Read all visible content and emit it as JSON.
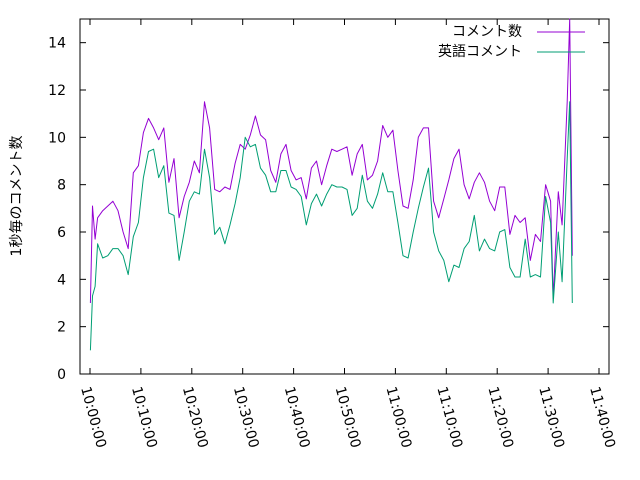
{
  "chart_data": {
    "type": "line",
    "ylabel": "1秒毎のコメント数",
    "ylim": [
      0,
      15
    ],
    "yticks": [
      0,
      2,
      4,
      6,
      8,
      10,
      12,
      14
    ],
    "xticks": [
      "10:00:00",
      "10:10:00",
      "10:20:00",
      "10:30:00",
      "10:40:00",
      "10:50:00",
      "11:00:00",
      "11:10:00",
      "11:20:00",
      "11:30:00",
      "11:40:00"
    ],
    "legend_position": "top-right",
    "series": [
      {
        "name": "コメント数",
        "color": "#9400d3",
        "points": [
          [
            "10:00:05",
            3.0
          ],
          [
            "10:00:30",
            7.1
          ],
          [
            "10:01:00",
            5.7
          ],
          [
            "10:01:30",
            6.6
          ],
          [
            "10:02:30",
            6.9
          ],
          [
            "10:03:30",
            7.1
          ],
          [
            "10:04:30",
            7.3
          ],
          [
            "10:05:30",
            6.9
          ],
          [
            "10:06:30",
            6.0
          ],
          [
            "10:07:30",
            5.3
          ],
          [
            "10:08:30",
            8.5
          ],
          [
            "10:09:30",
            8.8
          ],
          [
            "10:10:30",
            10.2
          ],
          [
            "10:11:30",
            10.8
          ],
          [
            "10:12:30",
            10.4
          ],
          [
            "10:13:30",
            9.9
          ],
          [
            "10:14:30",
            10.4
          ],
          [
            "10:15:30",
            8.1
          ],
          [
            "10:16:30",
            9.1
          ],
          [
            "10:17:30",
            6.6
          ],
          [
            "10:18:30",
            7.5
          ],
          [
            "10:19:30",
            8.1
          ],
          [
            "10:20:30",
            9.0
          ],
          [
            "10:21:30",
            8.5
          ],
          [
            "10:22:30",
            11.5
          ],
          [
            "10:23:30",
            10.4
          ],
          [
            "10:24:30",
            7.8
          ],
          [
            "10:25:30",
            7.7
          ],
          [
            "10:26:30",
            7.9
          ],
          [
            "10:27:30",
            7.8
          ],
          [
            "10:28:30",
            8.9
          ],
          [
            "10:29:30",
            9.7
          ],
          [
            "10:30:30",
            9.5
          ],
          [
            "10:31:30",
            10.1
          ],
          [
            "10:32:30",
            10.9
          ],
          [
            "10:33:30",
            10.1
          ],
          [
            "10:34:30",
            9.9
          ],
          [
            "10:35:30",
            8.6
          ],
          [
            "10:36:30",
            8.1
          ],
          [
            "10:37:30",
            9.3
          ],
          [
            "10:38:30",
            9.7
          ],
          [
            "10:39:30",
            8.6
          ],
          [
            "10:40:30",
            8.2
          ],
          [
            "10:41:30",
            8.3
          ],
          [
            "10:42:30",
            7.4
          ],
          [
            "10:43:30",
            8.7
          ],
          [
            "10:44:30",
            9.0
          ],
          [
            "10:45:30",
            8.0
          ],
          [
            "10:46:30",
            8.8
          ],
          [
            "10:47:30",
            9.5
          ],
          [
            "10:48:30",
            9.4
          ],
          [
            "10:49:30",
            9.5
          ],
          [
            "10:50:30",
            9.6
          ],
          [
            "10:51:30",
            8.4
          ],
          [
            "10:52:30",
            9.3
          ],
          [
            "10:53:30",
            9.7
          ],
          [
            "10:54:30",
            8.2
          ],
          [
            "10:55:30",
            8.4
          ],
          [
            "10:56:30",
            9.0
          ],
          [
            "10:57:30",
            10.5
          ],
          [
            "10:58:30",
            10.0
          ],
          [
            "10:59:30",
            10.3
          ],
          [
            "11:00:30",
            8.6
          ],
          [
            "11:01:30",
            7.1
          ],
          [
            "11:02:30",
            7.0
          ],
          [
            "11:03:30",
            8.2
          ],
          [
            "11:04:30",
            10.0
          ],
          [
            "11:05:30",
            10.4
          ],
          [
            "11:06:30",
            10.4
          ],
          [
            "11:07:30",
            7.3
          ],
          [
            "11:08:30",
            6.6
          ],
          [
            "11:09:30",
            7.4
          ],
          [
            "11:10:30",
            8.2
          ],
          [
            "11:11:30",
            9.1
          ],
          [
            "11:12:30",
            9.5
          ],
          [
            "11:13:30",
            8.0
          ],
          [
            "11:14:30",
            7.4
          ],
          [
            "11:15:30",
            8.1
          ],
          [
            "11:16:30",
            8.5
          ],
          [
            "11:17:30",
            8.1
          ],
          [
            "11:18:30",
            7.3
          ],
          [
            "11:19:30",
            6.9
          ],
          [
            "11:20:30",
            7.9
          ],
          [
            "11:21:30",
            7.9
          ],
          [
            "11:22:30",
            5.9
          ],
          [
            "11:23:30",
            6.7
          ],
          [
            "11:24:30",
            6.4
          ],
          [
            "11:25:30",
            6.6
          ],
          [
            "11:26:30",
            4.8
          ],
          [
            "11:27:30",
            5.9
          ],
          [
            "11:28:30",
            5.6
          ],
          [
            "11:29:30",
            8.0
          ],
          [
            "11:30:30",
            7.3
          ],
          [
            "11:31:00",
            3.2
          ],
          [
            "11:32:00",
            7.7
          ],
          [
            "11:32:45",
            6.3
          ],
          [
            "11:33:45",
            11.5
          ],
          [
            "11:34:15",
            15.0
          ],
          [
            "11:34:45",
            5.0
          ]
        ]
      },
      {
        "name": "英語コメント",
        "color": "#009e73",
        "points": [
          [
            "10:00:05",
            1.0
          ],
          [
            "10:00:30",
            3.3
          ],
          [
            "10:01:00",
            3.7
          ],
          [
            "10:01:30",
            5.5
          ],
          [
            "10:02:30",
            4.9
          ],
          [
            "10:03:30",
            5.0
          ],
          [
            "10:04:30",
            5.3
          ],
          [
            "10:05:30",
            5.3
          ],
          [
            "10:06:30",
            5.0
          ],
          [
            "10:07:30",
            4.2
          ],
          [
            "10:08:30",
            5.8
          ],
          [
            "10:09:30",
            6.4
          ],
          [
            "10:10:30",
            8.3
          ],
          [
            "10:11:30",
            9.4
          ],
          [
            "10:12:30",
            9.5
          ],
          [
            "10:13:30",
            8.3
          ],
          [
            "10:14:30",
            8.8
          ],
          [
            "10:15:30",
            6.8
          ],
          [
            "10:16:30",
            6.7
          ],
          [
            "10:17:30",
            4.8
          ],
          [
            "10:18:30",
            6.0
          ],
          [
            "10:19:30",
            7.3
          ],
          [
            "10:20:30",
            7.7
          ],
          [
            "10:21:30",
            7.6
          ],
          [
            "10:22:30",
            9.5
          ],
          [
            "10:23:30",
            8.3
          ],
          [
            "10:24:30",
            5.9
          ],
          [
            "10:25:30",
            6.2
          ],
          [
            "10:26:30",
            5.5
          ],
          [
            "10:27:30",
            6.3
          ],
          [
            "10:28:30",
            7.2
          ],
          [
            "10:29:30",
            8.3
          ],
          [
            "10:30:30",
            10.0
          ],
          [
            "10:31:30",
            9.6
          ],
          [
            "10:32:30",
            9.7
          ],
          [
            "10:33:30",
            8.7
          ],
          [
            "10:34:30",
            8.4
          ],
          [
            "10:35:30",
            7.7
          ],
          [
            "10:36:30",
            7.7
          ],
          [
            "10:37:30",
            8.6
          ],
          [
            "10:38:30",
            8.6
          ],
          [
            "10:39:30",
            7.9
          ],
          [
            "10:40:30",
            7.8
          ],
          [
            "10:41:30",
            7.5
          ],
          [
            "10:42:30",
            6.3
          ],
          [
            "10:43:30",
            7.2
          ],
          [
            "10:44:30",
            7.6
          ],
          [
            "10:45:30",
            7.1
          ],
          [
            "10:46:30",
            7.6
          ],
          [
            "10:47:30",
            8.0
          ],
          [
            "10:48:30",
            7.9
          ],
          [
            "10:49:30",
            7.9
          ],
          [
            "10:50:30",
            7.8
          ],
          [
            "10:51:30",
            6.7
          ],
          [
            "10:52:30",
            7.0
          ],
          [
            "10:53:30",
            8.4
          ],
          [
            "10:54:30",
            7.3
          ],
          [
            "10:55:30",
            7.0
          ],
          [
            "10:56:30",
            7.6
          ],
          [
            "10:57:30",
            8.5
          ],
          [
            "10:58:30",
            7.7
          ],
          [
            "10:59:30",
            7.7
          ],
          [
            "11:00:30",
            6.4
          ],
          [
            "11:01:30",
            5.0
          ],
          [
            "11:02:30",
            4.9
          ],
          [
            "11:03:30",
            6.0
          ],
          [
            "11:04:30",
            7.0
          ],
          [
            "11:05:30",
            7.9
          ],
          [
            "11:06:30",
            8.7
          ],
          [
            "11:07:30",
            6.0
          ],
          [
            "11:08:30",
            5.2
          ],
          [
            "11:09:30",
            4.8
          ],
          [
            "11:10:30",
            3.9
          ],
          [
            "11:11:30",
            4.6
          ],
          [
            "11:12:30",
            4.5
          ],
          [
            "11:13:30",
            5.3
          ],
          [
            "11:14:30",
            5.6
          ],
          [
            "11:15:30",
            6.7
          ],
          [
            "11:16:30",
            5.2
          ],
          [
            "11:17:30",
            5.7
          ],
          [
            "11:18:30",
            5.3
          ],
          [
            "11:19:30",
            5.2
          ],
          [
            "11:20:30",
            6.0
          ],
          [
            "11:21:30",
            6.1
          ],
          [
            "11:22:30",
            4.5
          ],
          [
            "11:23:30",
            4.1
          ],
          [
            "11:24:30",
            4.1
          ],
          [
            "11:25:30",
            5.7
          ],
          [
            "11:26:30",
            4.1
          ],
          [
            "11:27:30",
            4.2
          ],
          [
            "11:28:30",
            4.1
          ],
          [
            "11:29:30",
            7.5
          ],
          [
            "11:30:30",
            6.4
          ],
          [
            "11:31:00",
            3.0
          ],
          [
            "11:32:00",
            6.0
          ],
          [
            "11:32:45",
            3.9
          ],
          [
            "11:33:45",
            9.1
          ],
          [
            "11:34:15",
            11.5
          ],
          [
            "11:34:45",
            3.0
          ]
        ]
      }
    ]
  }
}
